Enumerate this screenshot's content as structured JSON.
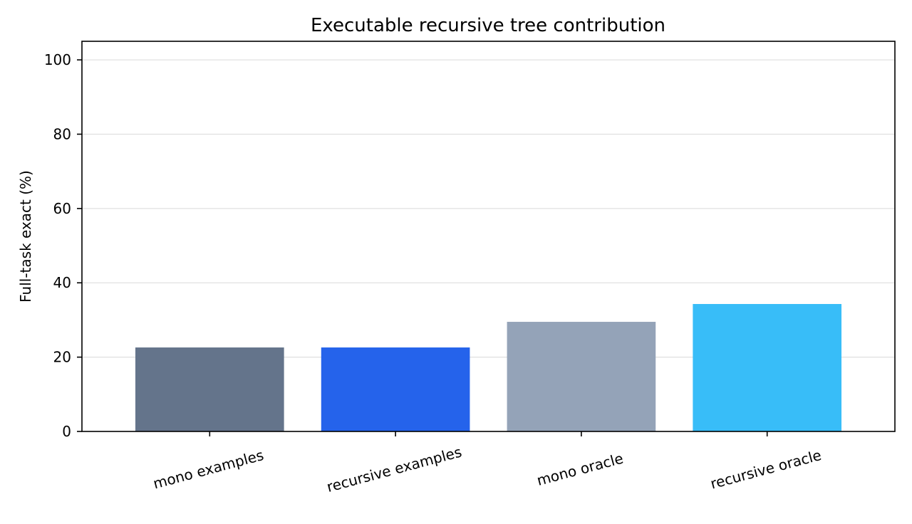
{
  "chart_data": {
    "type": "bar",
    "title": "Executable recursive tree contribution",
    "xlabel": "",
    "ylabel": "Full-task exact (%)",
    "categories": [
      "mono examples",
      "recursive examples",
      "mono oracle",
      "recursive oracle"
    ],
    "values": [
      22.6,
      22.6,
      29.5,
      34.3
    ],
    "colors": [
      "#64748b",
      "#2563eb",
      "#94a3b8",
      "#38bdf8"
    ],
    "ylim": [
      0,
      105
    ],
    "yticks": [
      0,
      20,
      40,
      60,
      80,
      100
    ],
    "grid": true,
    "legend": "none"
  }
}
